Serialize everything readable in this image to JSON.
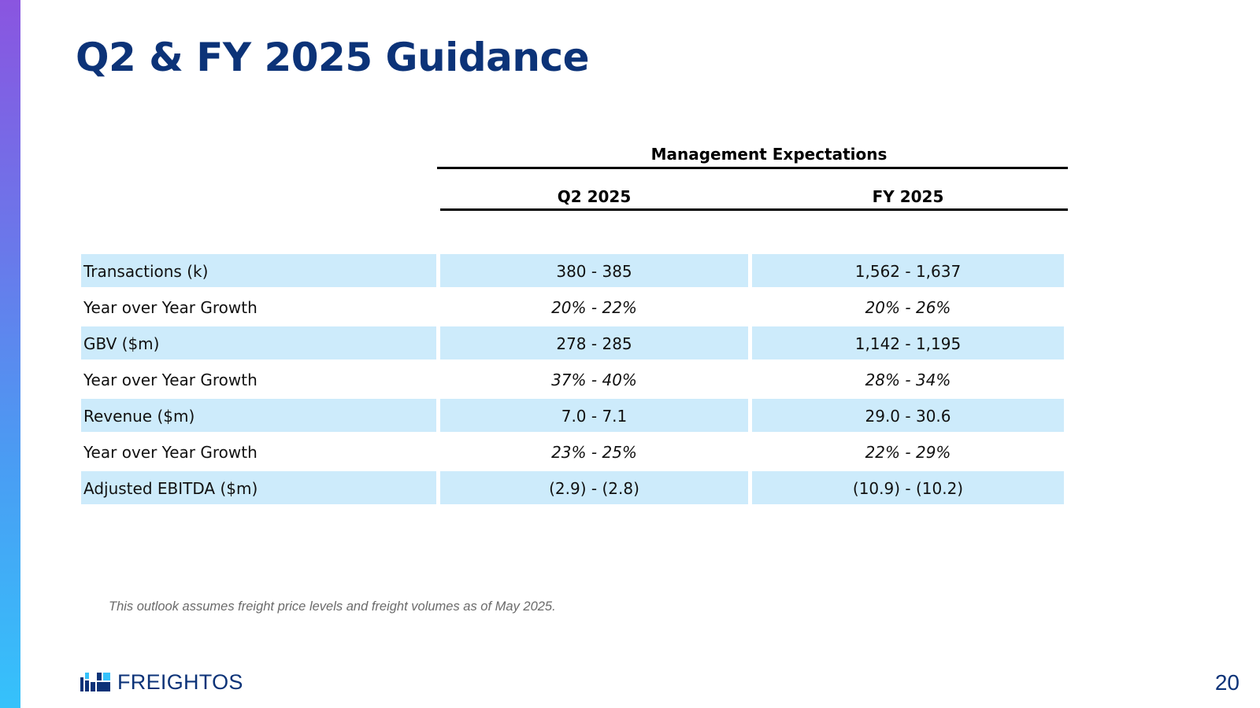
{
  "slide": {
    "title": "Q2 & FY 2025 Guidance",
    "page_number": "20",
    "footnote": "This outlook assumes freight price levels and freight volumes as of May 2025."
  },
  "table": {
    "group_header": "Management Expectations",
    "columns": [
      "Q2 2025",
      "FY 2025"
    ],
    "rows": [
      {
        "label": "Transactions (k)",
        "q2": "380 - 385",
        "fy": "1,562 - 1,637",
        "italic": false,
        "shaded": true
      },
      {
        "label": "Year over Year Growth",
        "q2": "20% - 22%",
        "fy": "20% - 26%",
        "italic": true,
        "shaded": false
      },
      {
        "label": "GBV ($m)",
        "q2": "278 - 285",
        "fy": "1,142 - 1,195",
        "italic": false,
        "shaded": true
      },
      {
        "label": "Year over Year Growth",
        "q2": "37% - 40%",
        "fy": "28% - 34%",
        "italic": true,
        "shaded": false
      },
      {
        "label": "Revenue ($m)",
        "q2": "7.0 - 7.1",
        "fy": "29.0 - 30.6",
        "italic": false,
        "shaded": true
      },
      {
        "label": "Year over Year Growth",
        "q2": "23% - 25%",
        "fy": "22% - 29%",
        "italic": true,
        "shaded": false
      },
      {
        "label": "Adjusted EBITDA ($m)",
        "q2": "(2.9) - (2.8)",
        "fy": "(10.9) - (10.2)",
        "italic": false,
        "shaded": true
      }
    ]
  },
  "brand": {
    "logo_text": "FREIGHTOS",
    "logo_icon": "freightos-logo-icon",
    "primary_color": "#0c3378",
    "accent_color": "#35c2fb",
    "row_shade_color": "#cdebfb"
  }
}
